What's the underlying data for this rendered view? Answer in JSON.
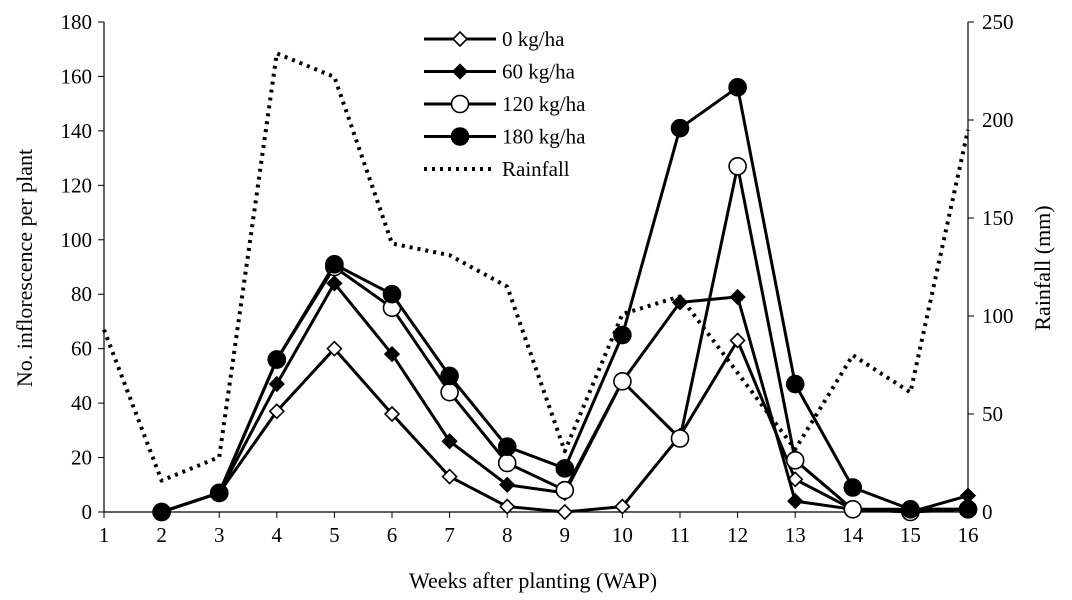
{
  "chart_data": {
    "type": "line",
    "xlabel": "Weeks after planting (WAP)",
    "ylabel": "No. inflorescence per plant",
    "y2label": "Rainfall (mm)",
    "x": [
      1,
      2,
      3,
      4,
      5,
      6,
      7,
      8,
      9,
      10,
      11,
      12,
      13,
      14,
      15,
      16
    ],
    "xlim": [
      1,
      16
    ],
    "ylim": [
      0,
      180
    ],
    "y2lim": [
      0,
      250
    ],
    "xticks": [
      "1",
      "2",
      "3",
      "4",
      "5",
      "6",
      "7",
      "8",
      "9",
      "10",
      "11",
      "12",
      "13",
      "14",
      "15",
      "16"
    ],
    "yticks": [
      "0",
      "20",
      "40",
      "60",
      "80",
      "100",
      "120",
      "140",
      "160",
      "180"
    ],
    "y2ticks": [
      "0",
      "50",
      "100",
      "150",
      "200",
      "250"
    ],
    "grid": false,
    "legend_position": "top-center",
    "series": [
      {
        "name": "0 kg/ha",
        "axis": "left",
        "marker": "open-diamond",
        "color": "#000000",
        "x": [
          2,
          3,
          4,
          5,
          6,
          7,
          8,
          9,
          10,
          11,
          12,
          13,
          14,
          15,
          16
        ],
        "values": [
          0,
          7,
          37,
          60,
          36,
          13,
          2,
          0,
          2,
          28,
          63,
          12,
          1,
          1,
          1
        ]
      },
      {
        "name": "60 kg/ha",
        "axis": "left",
        "marker": "filled-diamond",
        "color": "#000000",
        "x": [
          2,
          3,
          4,
          5,
          6,
          7,
          8,
          9,
          10,
          11,
          12,
          13,
          14,
          15,
          16
        ],
        "values": [
          0,
          7,
          47,
          84,
          58,
          26,
          10,
          7,
          48,
          77,
          79,
          4,
          1,
          0,
          6
        ]
      },
      {
        "name": "120 kg/ha",
        "axis": "left",
        "marker": "open-circle",
        "color": "#000000",
        "x": [
          2,
          3,
          4,
          5,
          6,
          7,
          8,
          9,
          10,
          11,
          12,
          13,
          14,
          15,
          16
        ],
        "values": [
          0,
          7,
          56,
          90,
          75,
          44,
          18,
          8,
          48,
          27,
          127,
          19,
          1,
          0,
          1
        ]
      },
      {
        "name": "180 kg/ha",
        "axis": "left",
        "marker": "filled-circle",
        "color": "#000000",
        "x": [
          2,
          3,
          4,
          5,
          6,
          7,
          8,
          9,
          10,
          11,
          12,
          13,
          14,
          15,
          16
        ],
        "values": [
          0,
          7,
          56,
          91,
          80,
          50,
          24,
          16,
          65,
          141,
          156,
          47,
          9,
          1,
          1
        ]
      },
      {
        "name": "Rainfall",
        "axis": "right",
        "style": "dotted",
        "color": "#000000",
        "x": [
          1,
          2,
          3,
          4,
          5,
          6,
          7,
          8,
          9,
          10,
          11,
          12,
          13,
          14,
          15,
          16
        ],
        "values": [
          93,
          16,
          28,
          234,
          222,
          137,
          131,
          115,
          31,
          101,
          110,
          71,
          32,
          80,
          61,
          195
        ]
      }
    ]
  }
}
